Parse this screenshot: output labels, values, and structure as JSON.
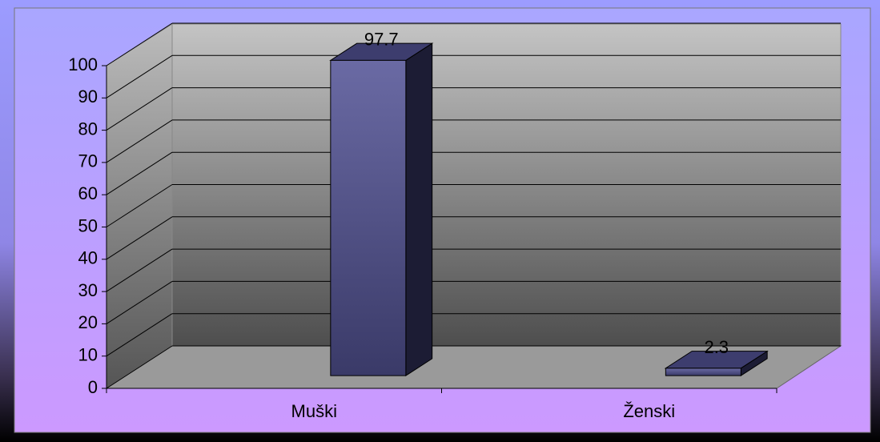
{
  "chart_data": {
    "type": "bar3d",
    "categories": [
      "Muški",
      "Ženski"
    ],
    "values": [
      97.7,
      2.3
    ],
    "color": "#55558a",
    "ylim": [
      0,
      100
    ],
    "yticks": [
      0,
      10,
      20,
      30,
      40,
      50,
      60,
      70,
      80,
      90,
      100
    ],
    "grid": true
  }
}
